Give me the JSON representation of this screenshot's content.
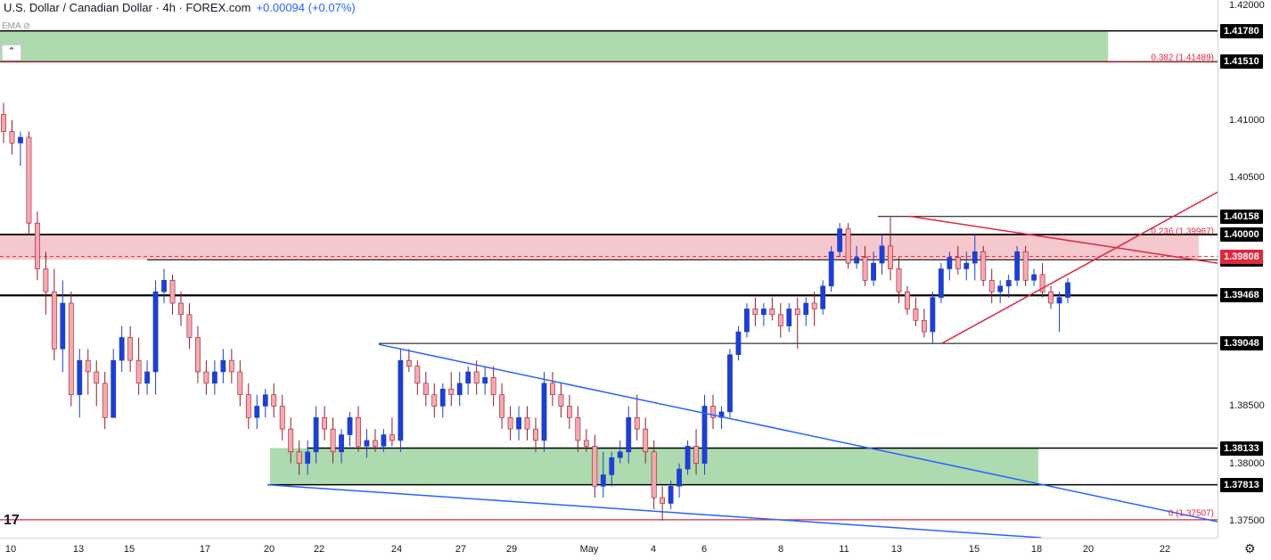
{
  "header": {
    "symbol": "U.S. Dollar / Canadian Dollar · 4h · FOREX.com",
    "change": "+0.00094 (+0.07%)",
    "indicator": "EMA"
  },
  "colors": {
    "up": "#1e3fd0",
    "down": "#f7a8b1",
    "level_line": "#000000",
    "red_line": "#e3263f",
    "blue_line": "#2962ff",
    "green_zone": "#a5d6a7",
    "red_zone": "#f4c2c8"
  },
  "chart_data": {
    "type": "candlestick",
    "ylim": [
      1.3735,
      1.4205
    ],
    "yticks": [
      "1.42000",
      "1.41000",
      "1.40500",
      "1.38500",
      "1.38000",
      "1.37500"
    ],
    "xticks": [
      "10",
      "13",
      "15",
      "17",
      "20",
      "22",
      "24",
      "27",
      "29",
      "May",
      "4",
      "6",
      "8",
      "11",
      "13",
      "15",
      "18",
      "20",
      "22"
    ],
    "levels": [
      {
        "value": 1.4178,
        "label": "1.41780"
      },
      {
        "value": 1.4151,
        "label": "1.41510"
      },
      {
        "value": 1.40158,
        "label": "1.40158"
      },
      {
        "value": 1.4,
        "label": "1.40000"
      },
      {
        "value": 1.39779,
        "label": "1.39779"
      },
      {
        "value": 1.39468,
        "label": "1.39468"
      },
      {
        "value": 1.39048,
        "label": "1.39048"
      },
      {
        "value": 1.38133,
        "label": "1.38133"
      },
      {
        "value": 1.37813,
        "label": "1.37813"
      }
    ],
    "current_price": {
      "value": 1.39808,
      "label": "1.39808"
    },
    "fib_labels": [
      {
        "value": 1.41489,
        "label": "0.382 (1.41489)"
      },
      {
        "value": 1.39967,
        "label": "0.236 (1.39967)"
      },
      {
        "value": 1.37507,
        "label": "0 (1.37507)"
      }
    ],
    "zones": [
      {
        "name": "upper-green-zone",
        "from": 1.4151,
        "to": 1.4178
      },
      {
        "name": "red-resistance-zone",
        "from": 1.3978,
        "to": 1.4
      },
      {
        "name": "lower-green-zone",
        "from": 1.37813,
        "to": 1.38133
      }
    ],
    "candles_ohlc": [
      [
        1.4105,
        1.4115,
        1.408,
        1.409
      ],
      [
        1.409,
        1.41,
        1.407,
        1.408
      ],
      [
        1.408,
        1.409,
        1.406,
        1.4085
      ],
      [
        1.4085,
        1.409,
        1.4,
        1.401
      ],
      [
        1.401,
        1.402,
        1.396,
        1.397
      ],
      [
        1.397,
        1.3985,
        1.393,
        1.395
      ],
      [
        1.395,
        1.397,
        1.389,
        1.39
      ],
      [
        1.39,
        1.396,
        1.388,
        1.394
      ],
      [
        1.394,
        1.395,
        1.385,
        1.386
      ],
      [
        1.386,
        1.39,
        1.384,
        1.389
      ],
      [
        1.389,
        1.39,
        1.386,
        1.388
      ],
      [
        1.388,
        1.389,
        1.385,
        1.387
      ],
      [
        1.387,
        1.388,
        1.383,
        1.384
      ],
      [
        1.384,
        1.39,
        1.384,
        1.389
      ],
      [
        1.389,
        1.392,
        1.388,
        1.391
      ],
      [
        1.391,
        1.392,
        1.388,
        1.389
      ],
      [
        1.389,
        1.391,
        1.386,
        1.387
      ],
      [
        1.387,
        1.389,
        1.386,
        1.388
      ],
      [
        1.388,
        1.396,
        1.386,
        1.395
      ],
      [
        1.395,
        1.397,
        1.394,
        1.396
      ],
      [
        1.396,
        1.3965,
        1.393,
        1.394
      ],
      [
        1.394,
        1.395,
        1.392,
        1.393
      ],
      [
        1.393,
        1.394,
        1.39,
        1.391
      ],
      [
        1.391,
        1.392,
        1.387,
        1.388
      ],
      [
        1.388,
        1.389,
        1.386,
        1.387
      ],
      [
        1.387,
        1.389,
        1.386,
        1.388
      ],
      [
        1.388,
        1.39,
        1.387,
        1.389
      ],
      [
        1.389,
        1.39,
        1.387,
        1.388
      ],
      [
        1.388,
        1.389,
        1.385,
        1.386
      ],
      [
        1.386,
        1.387,
        1.383,
        1.384
      ],
      [
        1.384,
        1.386,
        1.383,
        1.385
      ],
      [
        1.385,
        1.3865,
        1.384,
        1.386
      ],
      [
        1.386,
        1.387,
        1.384,
        1.385
      ],
      [
        1.385,
        1.386,
        1.382,
        1.383
      ],
      [
        1.383,
        1.384,
        1.38,
        1.381
      ],
      [
        1.381,
        1.382,
        1.379,
        1.38
      ],
      [
        1.38,
        1.382,
        1.379,
        1.381
      ],
      [
        1.381,
        1.385,
        1.38,
        1.384
      ],
      [
        1.384,
        1.385,
        1.382,
        1.383
      ],
      [
        1.383,
        1.384,
        1.38,
        1.381
      ],
      [
        1.381,
        1.383,
        1.38,
        1.3825
      ],
      [
        1.3825,
        1.3845,
        1.3815,
        1.384
      ],
      [
        1.384,
        1.385,
        1.381,
        1.3815
      ],
      [
        1.3815,
        1.383,
        1.3805,
        1.382
      ],
      [
        1.382,
        1.383,
        1.381,
        1.3815
      ],
      [
        1.3815,
        1.383,
        1.381,
        1.3825
      ],
      [
        1.3825,
        1.384,
        1.3815,
        1.382
      ],
      [
        1.382,
        1.39,
        1.381,
        1.389
      ],
      [
        1.389,
        1.39,
        1.388,
        1.3885
      ],
      [
        1.3885,
        1.389,
        1.386,
        1.387
      ],
      [
        1.387,
        1.388,
        1.385,
        1.386
      ],
      [
        1.386,
        1.387,
        1.384,
        1.385
      ],
      [
        1.385,
        1.387,
        1.384,
        1.3865
      ],
      [
        1.3865,
        1.388,
        1.385,
        1.386
      ],
      [
        1.386,
        1.388,
        1.385,
        1.387
      ],
      [
        1.387,
        1.3885,
        1.386,
        1.388
      ],
      [
        1.388,
        1.389,
        1.386,
        1.387
      ],
      [
        1.387,
        1.3885,
        1.386,
        1.3875
      ],
      [
        1.3875,
        1.3885,
        1.385,
        1.386
      ],
      [
        1.386,
        1.387,
        1.383,
        1.384
      ],
      [
        1.384,
        1.385,
        1.382,
        1.383
      ],
      [
        1.383,
        1.385,
        1.382,
        1.384
      ],
      [
        1.384,
        1.385,
        1.382,
        1.383
      ],
      [
        1.383,
        1.384,
        1.381,
        1.382
      ],
      [
        1.382,
        1.388,
        1.381,
        1.387
      ],
      [
        1.387,
        1.388,
        1.385,
        1.386
      ],
      [
        1.386,
        1.387,
        1.384,
        1.385
      ],
      [
        1.385,
        1.386,
        1.383,
        1.384
      ],
      [
        1.384,
        1.385,
        1.381,
        1.382
      ],
      [
        1.382,
        1.383,
        1.381,
        1.3815
      ],
      [
        1.3815,
        1.3825,
        1.377,
        1.378
      ],
      [
        1.378,
        1.381,
        1.377,
        1.379
      ],
      [
        1.379,
        1.381,
        1.378,
        1.3805
      ],
      [
        1.3805,
        1.382,
        1.38,
        1.381
      ],
      [
        1.381,
        1.385,
        1.38,
        1.384
      ],
      [
        1.384,
        1.386,
        1.382,
        1.383
      ],
      [
        1.383,
        1.384,
        1.38,
        1.381
      ],
      [
        1.381,
        1.382,
        1.376,
        1.377
      ],
      [
        1.377,
        1.378,
        1.375,
        1.3765
      ],
      [
        1.3765,
        1.3785,
        1.376,
        1.378
      ],
      [
        1.378,
        1.38,
        1.377,
        1.3795
      ],
      [
        1.3795,
        1.382,
        1.379,
        1.3815
      ],
      [
        1.3815,
        1.383,
        1.379,
        1.38
      ],
      [
        1.38,
        1.386,
        1.379,
        1.385
      ],
      [
        1.385,
        1.386,
        1.383,
        1.384
      ],
      [
        1.384,
        1.385,
        1.383,
        1.3845
      ],
      [
        1.3845,
        1.39,
        1.384,
        1.3895
      ],
      [
        1.3895,
        1.392,
        1.389,
        1.3915
      ],
      [
        1.3915,
        1.394,
        1.391,
        1.3935
      ],
      [
        1.3935,
        1.3945,
        1.392,
        1.393
      ],
      [
        1.393,
        1.394,
        1.392,
        1.3935
      ],
      [
        1.3935,
        1.3945,
        1.3925,
        1.393
      ],
      [
        1.393,
        1.394,
        1.391,
        1.392
      ],
      [
        1.392,
        1.394,
        1.3915,
        1.3935
      ],
      [
        1.3935,
        1.3945,
        1.39,
        1.393
      ],
      [
        1.393,
        1.3945,
        1.392,
        1.394
      ],
      [
        1.394,
        1.395,
        1.392,
        1.3935
      ],
      [
        1.3935,
        1.396,
        1.393,
        1.3955
      ],
      [
        1.3955,
        1.399,
        1.395,
        1.3985
      ],
      [
        1.3985,
        1.401,
        1.398,
        1.4005
      ],
      [
        1.4005,
        1.401,
        1.397,
        1.3975
      ],
      [
        1.3975,
        1.399,
        1.397,
        1.398
      ],
      [
        1.398,
        1.399,
        1.3955,
        1.396
      ],
      [
        1.396,
        1.3985,
        1.3955,
        1.3975
      ],
      [
        1.3975,
        1.4,
        1.3965,
        1.399
      ],
      [
        1.399,
        1.4015,
        1.396,
        1.397
      ],
      [
        1.397,
        1.398,
        1.394,
        1.395
      ],
      [
        1.395,
        1.3955,
        1.393,
        1.3935
      ],
      [
        1.3935,
        1.3945,
        1.392,
        1.3925
      ],
      [
        1.3925,
        1.3935,
        1.391,
        1.3915
      ],
      [
        1.3915,
        1.395,
        1.3905,
        1.3945
      ],
      [
        1.3945,
        1.3975,
        1.394,
        1.397
      ],
      [
        1.397,
        1.3985,
        1.396,
        1.398
      ],
      [
        1.398,
        1.399,
        1.3965,
        1.397
      ],
      [
        1.397,
        1.3985,
        1.396,
        1.3975
      ],
      [
        1.3975,
        1.4,
        1.396,
        1.3985
      ],
      [
        1.3985,
        1.399,
        1.3955,
        1.396
      ],
      [
        1.396,
        1.397,
        1.394,
        1.395
      ],
      [
        1.395,
        1.396,
        1.394,
        1.3955
      ],
      [
        1.3955,
        1.3965,
        1.3945,
        1.396
      ],
      [
        1.396,
        1.399,
        1.3955,
        1.3985
      ],
      [
        1.3985,
        1.399,
        1.3955,
        1.396
      ],
      [
        1.396,
        1.397,
        1.3955,
        1.3965
      ],
      [
        1.3965,
        1.3975,
        1.3945,
        1.395
      ],
      [
        1.395,
        1.3955,
        1.3935,
        1.394
      ],
      [
        1.394,
        1.395,
        1.3915,
        1.3945
      ],
      [
        1.3945,
        1.3962,
        1.394,
        1.3958
      ]
    ]
  }
}
